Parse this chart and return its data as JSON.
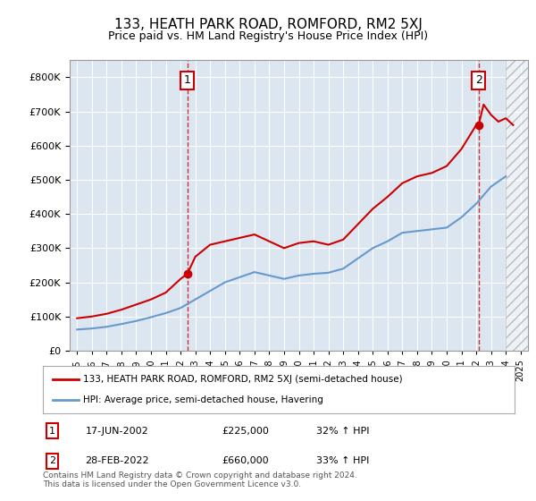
{
  "title": "133, HEATH PARK ROAD, ROMFORD, RM2 5XJ",
  "subtitle": "Price paid vs. HM Land Registry's House Price Index (HPI)",
  "legend_line1": "133, HEATH PARK ROAD, ROMFORD, RM2 5XJ (semi-detached house)",
  "legend_line2": "HPI: Average price, semi-detached house, Havering",
  "footer_line1": "Contains HM Land Registry data © Crown copyright and database right 2024.",
  "footer_line2": "This data is licensed under the Open Government Licence v3.0.",
  "annotation1": {
    "num": "1",
    "date": "17-JUN-2002",
    "price": "£225,000",
    "hpi": "32% ↑ HPI"
  },
  "annotation2": {
    "num": "2",
    "date": "28-FEB-2022",
    "price": "£660,000",
    "hpi": "33% ↑ HPI"
  },
  "transaction1_year": 2002.46,
  "transaction1_price": 225000,
  "transaction2_year": 2022.16,
  "transaction2_price": 660000,
  "hpi_years": [
    1995,
    1996,
    1997,
    1998,
    1999,
    2000,
    2001,
    2002,
    2003,
    2004,
    2005,
    2006,
    2007,
    2008,
    2009,
    2010,
    2011,
    2012,
    2013,
    2014,
    2015,
    2016,
    2017,
    2018,
    2019,
    2020,
    2021,
    2022,
    2023,
    2024
  ],
  "hpi_values": [
    62000,
    65000,
    70000,
    78000,
    87000,
    98000,
    110000,
    125000,
    150000,
    175000,
    200000,
    215000,
    230000,
    220000,
    210000,
    220000,
    225000,
    228000,
    240000,
    270000,
    300000,
    320000,
    345000,
    350000,
    355000,
    360000,
    390000,
    430000,
    480000,
    510000
  ],
  "prop_years": [
    1995,
    1996,
    1997,
    1998,
    1999,
    2000,
    2001,
    2002,
    2002.46,
    2003,
    2004,
    2005,
    2006,
    2007,
    2008,
    2009,
    2010,
    2011,
    2012,
    2013,
    2014,
    2015,
    2016,
    2017,
    2018,
    2019,
    2020,
    2021,
    2022,
    2022.16,
    2022.5,
    2023,
    2023.5,
    2024,
    2024.5
  ],
  "prop_values": [
    95000,
    100000,
    108000,
    120000,
    135000,
    150000,
    170000,
    210000,
    225000,
    275000,
    310000,
    320000,
    330000,
    340000,
    320000,
    300000,
    315000,
    320000,
    310000,
    325000,
    370000,
    415000,
    450000,
    490000,
    510000,
    520000,
    540000,
    590000,
    660000,
    660000,
    720000,
    690000,
    670000,
    680000,
    660000
  ],
  "line_color_red": "#cc0000",
  "line_color_blue": "#6699cc",
  "background_color": "#dce6f1",
  "plot_bg_color": "#dce6f1",
  "ylim": [
    0,
    850000
  ],
  "yticks": [
    0,
    100000,
    200000,
    300000,
    400000,
    500000,
    600000,
    700000,
    800000
  ],
  "xlim_start": 1994.5,
  "xlim_end": 2025.5,
  "hatch_start": 2024.0,
  "future_color": "#e8e8e8"
}
